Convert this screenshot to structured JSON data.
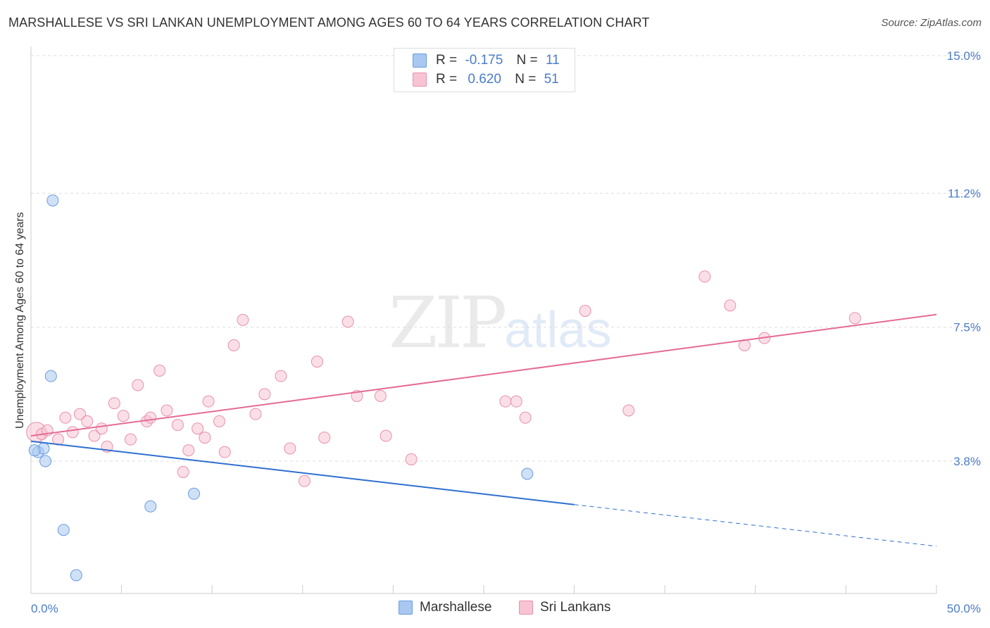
{
  "header": {
    "title": "MARSHALLESE VS SRI LANKAN UNEMPLOYMENT AMONG AGES 60 TO 64 YEARS CORRELATION CHART",
    "source": "Source: ZipAtlas.com"
  },
  "watermark": {
    "zip": "ZIP",
    "atlas": "atlas"
  },
  "legend": {
    "rows": [
      {
        "r_label": "R =",
        "r_value": "-0.175",
        "n_label": "N =",
        "n_value": "11",
        "color": "#a8c8f0",
        "border": "#6b9be0"
      },
      {
        "r_label": "R =",
        "r_value": "0.620",
        "n_label": "N =",
        "n_value": "51",
        "color": "#f8c4d4",
        "border": "#e890ac"
      }
    ]
  },
  "bottom_legend": [
    {
      "label": "Marshallese",
      "color": "#a8c8f0",
      "border": "#6b9be0"
    },
    {
      "label": "Sri Lankans",
      "color": "#f8c4d4",
      "border": "#e890ac"
    }
  ],
  "chart_data": {
    "type": "scatter",
    "title": "MARSHALLESE VS SRI LANKAN UNEMPLOYMENT AMONG AGES 60 TO 64 YEARS CORRELATION CHART",
    "xlabel": "",
    "ylabel": "Unemployment Among Ages 60 to 64 years",
    "xlim": [
      0,
      50
    ],
    "ylim": [
      0,
      15.4
    ],
    "x_tick_labels": [
      {
        "value": 0,
        "label": "0.0%"
      },
      {
        "value": 50,
        "label": "50.0%"
      }
    ],
    "y_tick_labels": [
      {
        "value": 3.8,
        "label": "3.8%"
      },
      {
        "value": 7.5,
        "label": "7.5%"
      },
      {
        "value": 11.2,
        "label": "11.2%"
      },
      {
        "value": 15.0,
        "label": "15.0%"
      }
    ],
    "series": [
      {
        "name": "Marshallese",
        "color": "#a8c8f0",
        "stroke": "#6b9be0",
        "line_color": "#2e6fd1",
        "trend": {
          "x0": 0,
          "y0": 4.35,
          "x1": 30,
          "y1": 2.6,
          "dash_to_x": 50,
          "dash_to_y": 1.45
        },
        "points": [
          {
            "x": 1.2,
            "y": 11.0
          },
          {
            "x": 1.1,
            "y": 6.15
          },
          {
            "x": 0.4,
            "y": 4.05
          },
          {
            "x": 0.7,
            "y": 4.15
          },
          {
            "x": 0.8,
            "y": 3.8
          },
          {
            "x": 1.8,
            "y": 1.9
          },
          {
            "x": 2.5,
            "y": 0.65
          },
          {
            "x": 6.6,
            "y": 2.55
          },
          {
            "x": 9.0,
            "y": 2.9
          },
          {
            "x": 27.4,
            "y": 3.45
          },
          {
            "x": 0.2,
            "y": 4.1
          }
        ]
      },
      {
        "name": "Sri Lankans",
        "color": "#f8c4d4",
        "stroke": "#e890ac",
        "line_color": "#e56a95",
        "trend": {
          "x0": 0,
          "y0": 4.5,
          "x1": 50,
          "y1": 7.85
        },
        "points": [
          {
            "x": 0.3,
            "y": 4.6,
            "big": true
          },
          {
            "x": 0.6,
            "y": 4.55
          },
          {
            "x": 0.9,
            "y": 4.65
          },
          {
            "x": 1.5,
            "y": 4.4
          },
          {
            "x": 1.9,
            "y": 5.0
          },
          {
            "x": 2.3,
            "y": 4.6
          },
          {
            "x": 2.7,
            "y": 5.1
          },
          {
            "x": 3.1,
            "y": 4.9
          },
          {
            "x": 3.5,
            "y": 4.5
          },
          {
            "x": 3.9,
            "y": 4.7
          },
          {
            "x": 4.2,
            "y": 4.2
          },
          {
            "x": 4.6,
            "y": 5.4
          },
          {
            "x": 5.1,
            "y": 5.05
          },
          {
            "x": 5.5,
            "y": 4.4
          },
          {
            "x": 5.9,
            "y": 5.9
          },
          {
            "x": 6.4,
            "y": 4.9
          },
          {
            "x": 6.6,
            "y": 5.0
          },
          {
            "x": 7.1,
            "y": 6.3
          },
          {
            "x": 7.5,
            "y": 5.2
          },
          {
            "x": 8.1,
            "y": 4.8
          },
          {
            "x": 8.4,
            "y": 3.5
          },
          {
            "x": 8.7,
            "y": 4.1
          },
          {
            "x": 9.2,
            "y": 4.7
          },
          {
            "x": 9.6,
            "y": 4.45
          },
          {
            "x": 9.8,
            "y": 5.45
          },
          {
            "x": 10.4,
            "y": 4.9
          },
          {
            "x": 10.7,
            "y": 4.05
          },
          {
            "x": 11.2,
            "y": 7.0
          },
          {
            "x": 11.7,
            "y": 7.7
          },
          {
            "x": 12.4,
            "y": 5.1
          },
          {
            "x": 12.9,
            "y": 5.65
          },
          {
            "x": 13.8,
            "y": 6.15
          },
          {
            "x": 14.3,
            "y": 4.15
          },
          {
            "x": 15.1,
            "y": 3.25
          },
          {
            "x": 15.8,
            "y": 6.55
          },
          {
            "x": 16.2,
            "y": 4.45
          },
          {
            "x": 17.5,
            "y": 7.65
          },
          {
            "x": 18.0,
            "y": 5.6
          },
          {
            "x": 19.6,
            "y": 4.5
          },
          {
            "x": 19.3,
            "y": 5.6
          },
          {
            "x": 21.0,
            "y": 3.85
          },
          {
            "x": 26.2,
            "y": 5.45
          },
          {
            "x": 26.8,
            "y": 5.45
          },
          {
            "x": 27.3,
            "y": 5.0
          },
          {
            "x": 30.6,
            "y": 7.95
          },
          {
            "x": 33.0,
            "y": 5.2
          },
          {
            "x": 37.2,
            "y": 8.9
          },
          {
            "x": 38.6,
            "y": 8.1
          },
          {
            "x": 39.4,
            "y": 7.0
          },
          {
            "x": 40.5,
            "y": 7.2
          },
          {
            "x": 45.5,
            "y": 7.75
          }
        ]
      }
    ]
  }
}
